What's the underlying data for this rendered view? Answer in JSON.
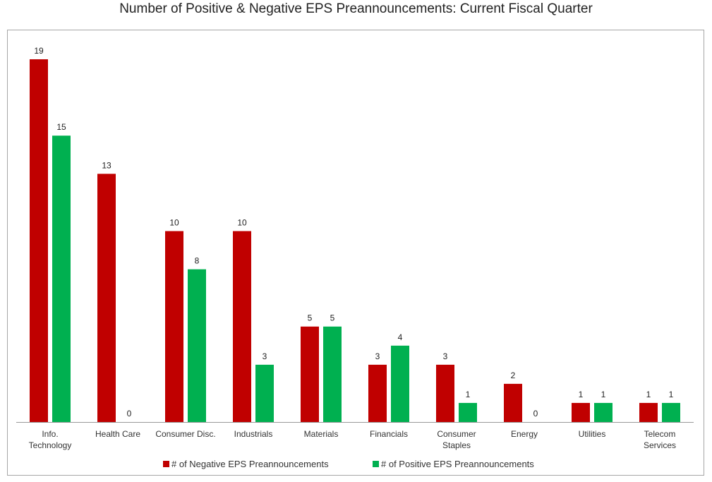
{
  "chart_data": {
    "type": "bar",
    "title": "Number of Positive & Negative EPS Preannouncements: Current Fiscal Quarter",
    "categories": [
      [
        "Info.",
        "Technology"
      ],
      [
        "Health Care"
      ],
      [
        "Consumer Disc."
      ],
      [
        "Industrials"
      ],
      [
        "Materials"
      ],
      [
        "Financials"
      ],
      [
        "Consumer",
        "Staples"
      ],
      [
        "Energy"
      ],
      [
        "Utilities"
      ],
      [
        "Telecom",
        "Services"
      ]
    ],
    "series": [
      {
        "name": "# of Negative EPS Preannouncements",
        "color": "#c00000",
        "values": [
          19,
          13,
          10,
          10,
          5,
          3,
          3,
          2,
          1,
          1
        ]
      },
      {
        "name": "# of Positive EPS Preannouncements",
        "color": "#00b050",
        "values": [
          15,
          0,
          8,
          3,
          5,
          4,
          1,
          0,
          1,
          1
        ]
      }
    ],
    "ylim": [
      0,
      20
    ],
    "grid": false,
    "legend_position": "bottom"
  }
}
